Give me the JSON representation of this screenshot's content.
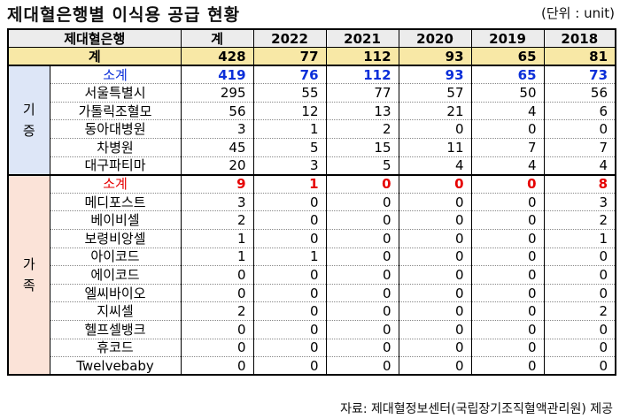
{
  "title": "제대혈은행별 이식용 공급 현황",
  "unit": "(단위 : unit)",
  "header": [
    "제대혈은행",
    "계",
    "2022",
    "2021",
    "2020",
    "2019",
    "2018"
  ],
  "total": {
    "label": "계",
    "values": [
      "428",
      "77",
      "112",
      "93",
      "65",
      "81"
    ]
  },
  "groups": [
    {
      "category": "기\n증",
      "subtotal": {
        "label": "소계",
        "values": [
          "419",
          "76",
          "112",
          "93",
          "65",
          "73"
        ]
      },
      "rows": [
        {
          "label": "서울특별시",
          "values": [
            "295",
            "55",
            "77",
            "57",
            "50",
            "56"
          ]
        },
        {
          "label": "가톨릭조혈모",
          "values": [
            "56",
            "12",
            "13",
            "21",
            "4",
            "6"
          ]
        },
        {
          "label": "동아대병원",
          "values": [
            "3",
            "1",
            "2",
            "0",
            "0",
            "0"
          ]
        },
        {
          "label": "차병원",
          "values": [
            "45",
            "5",
            "15",
            "11",
            "7",
            "7"
          ]
        },
        {
          "label": "대구파티마",
          "values": [
            "20",
            "3",
            "5",
            "4",
            "4",
            "4"
          ]
        }
      ]
    },
    {
      "category": "가\n족",
      "subtotal": {
        "label": "소계",
        "values": [
          "9",
          "1",
          "0",
          "0",
          "0",
          "8"
        ]
      },
      "rows": [
        {
          "label": "메디포스트",
          "values": [
            "3",
            "0",
            "0",
            "0",
            "0",
            "3"
          ]
        },
        {
          "label": "베이비셀",
          "values": [
            "2",
            "0",
            "0",
            "0",
            "0",
            "2"
          ]
        },
        {
          "label": "보령비앙셀",
          "values": [
            "1",
            "0",
            "0",
            "0",
            "0",
            "1"
          ]
        },
        {
          "label": "아이코드",
          "values": [
            "1",
            "1",
            "0",
            "0",
            "0",
            "0"
          ]
        },
        {
          "label": "에이코드",
          "values": [
            "0",
            "0",
            "0",
            "0",
            "0",
            "0"
          ]
        },
        {
          "label": "엘씨바이오",
          "values": [
            "0",
            "0",
            "0",
            "0",
            "0",
            "0"
          ]
        },
        {
          "label": "지씨셀",
          "values": [
            "2",
            "0",
            "0",
            "0",
            "0",
            "2"
          ]
        },
        {
          "label": "헬프셀뱅크",
          "values": [
            "0",
            "0",
            "0",
            "0",
            "0",
            "0"
          ]
        },
        {
          "label": "휴코드",
          "values": [
            "0",
            "0",
            "0",
            "0",
            "0",
            "0"
          ]
        },
        {
          "label": "Twelvebaby",
          "values": [
            "0",
            "0",
            "0",
            "0",
            "0",
            "0"
          ]
        }
      ]
    }
  ],
  "footer": "자료: 제대혈정보센터(국립장기조직혈액관리원) 제공"
}
